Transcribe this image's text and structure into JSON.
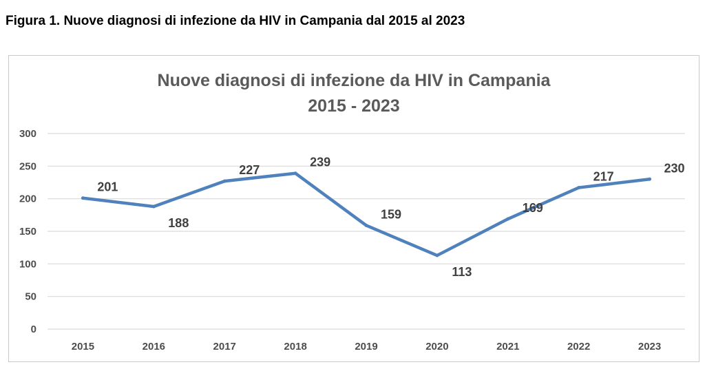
{
  "caption": "Figura 1. Nuove diagnosi di infezione da HIV in Campania dal 2015 al 2023",
  "colors": {
    "line": "#4f81bd",
    "grid": "#d9d9d9",
    "border": "#c9c9c9"
  },
  "chart_data": {
    "type": "line",
    "title": [
      "Nuove diagnosi di infezione da HIV in Campania",
      "2015 - 2023"
    ],
    "categories": [
      "2015",
      "2016",
      "2017",
      "2018",
      "2019",
      "2020",
      "2021",
      "2022",
      "2023"
    ],
    "series": [
      {
        "values": [
          201,
          188,
          227,
          239,
          159,
          113,
          169,
          217,
          230
        ]
      }
    ],
    "data_labels": [
      "201",
      "188",
      "227",
      "239",
      "159",
      "113",
      "169",
      "217",
      "230"
    ],
    "y_ticks": [
      "0",
      "50",
      "100",
      "150",
      "200",
      "250",
      "300"
    ],
    "ylim": [
      0,
      300
    ],
    "grid": true,
    "legend": "none"
  }
}
